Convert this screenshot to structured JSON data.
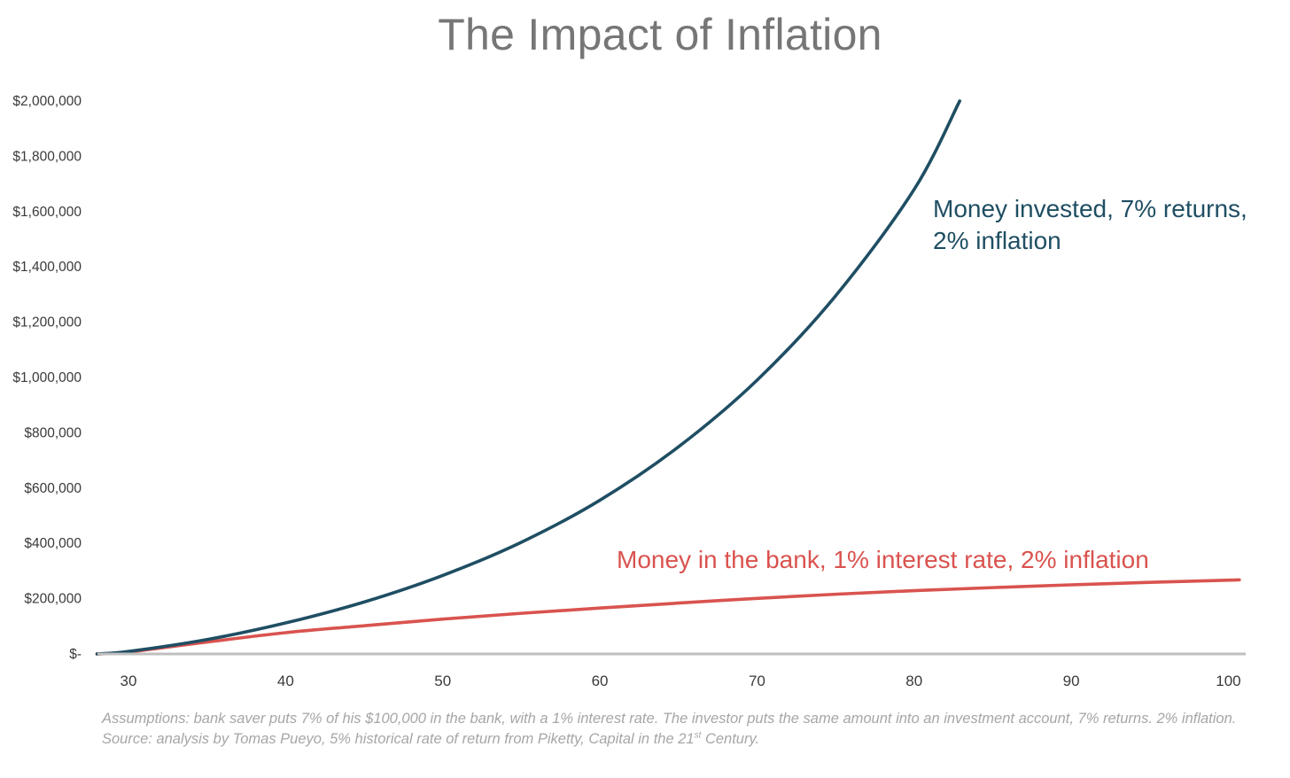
{
  "chart_data": {
    "type": "line",
    "title": "The Impact of Inflation",
    "xlabel": "",
    "ylabel": "",
    "xlim": [
      28,
      101
    ],
    "ylim": [
      0,
      2000000
    ],
    "x_ticks": [
      30,
      40,
      50,
      60,
      70,
      80,
      90,
      100
    ],
    "y_ticks": [
      {
        "value": 0,
        "label": "$-"
      },
      {
        "value": 200000,
        "label": "$200,000"
      },
      {
        "value": 400000,
        "label": "$400,000"
      },
      {
        "value": 600000,
        "label": "$600,000"
      },
      {
        "value": 800000,
        "label": "$800,000"
      },
      {
        "value": 1000000,
        "label": "$1,000,000"
      },
      {
        "value": 1200000,
        "label": "$1,200,000"
      },
      {
        "value": 1400000,
        "label": "$1,400,000"
      },
      {
        "value": 1600000,
        "label": "$1,600,000"
      },
      {
        "value": 1800000,
        "label": "$1,800,000"
      },
      {
        "value": 2000000,
        "label": "$2,000,000"
      }
    ],
    "grid": false,
    "series": [
      {
        "label_lines": [
          "Money invested, 7% returns,",
          "2% inflation"
        ],
        "color": "#1f4e63",
        "points": [
          [
            28,
            0
          ],
          [
            30,
            9000
          ],
          [
            35,
            52000
          ],
          [
            40,
            112000
          ],
          [
            45,
            188000
          ],
          [
            50,
            284000
          ],
          [
            55,
            404000
          ],
          [
            60,
            556000
          ],
          [
            65,
            749000
          ],
          [
            70,
            990000
          ],
          [
            75,
            1295000
          ],
          [
            80,
            1680000
          ],
          [
            82.9,
            2000000
          ]
        ]
      },
      {
        "label_lines": [
          "Money in the bank, 1% interest rate, 2% inflation"
        ],
        "color": "#d9534f",
        "points": [
          [
            28,
            0
          ],
          [
            30,
            7000
          ],
          [
            35,
            43000
          ],
          [
            40,
            77000
          ],
          [
            45,
            102000
          ],
          [
            50,
            126000
          ],
          [
            55,
            147000
          ],
          [
            60,
            166000
          ],
          [
            65,
            184000
          ],
          [
            70,
            201000
          ],
          [
            75,
            216000
          ],
          [
            80,
            229000
          ],
          [
            85,
            240000
          ],
          [
            90,
            250000
          ],
          [
            95,
            259000
          ],
          [
            100.7,
            268000
          ]
        ]
      }
    ]
  },
  "footnote": {
    "line1": "Assumptions: bank saver puts 7% of his $100,000 in the bank, with a 1% interest rate. The investor puts the same amount into an investment account, 7% returns. 2% inflation.",
    "line2_before": "Source: analysis by Tomas Pueyo, 5% historical rate of return from Piketty, Capital in the 21",
    "line2_sup": "st",
    "line2_after": " Century."
  }
}
